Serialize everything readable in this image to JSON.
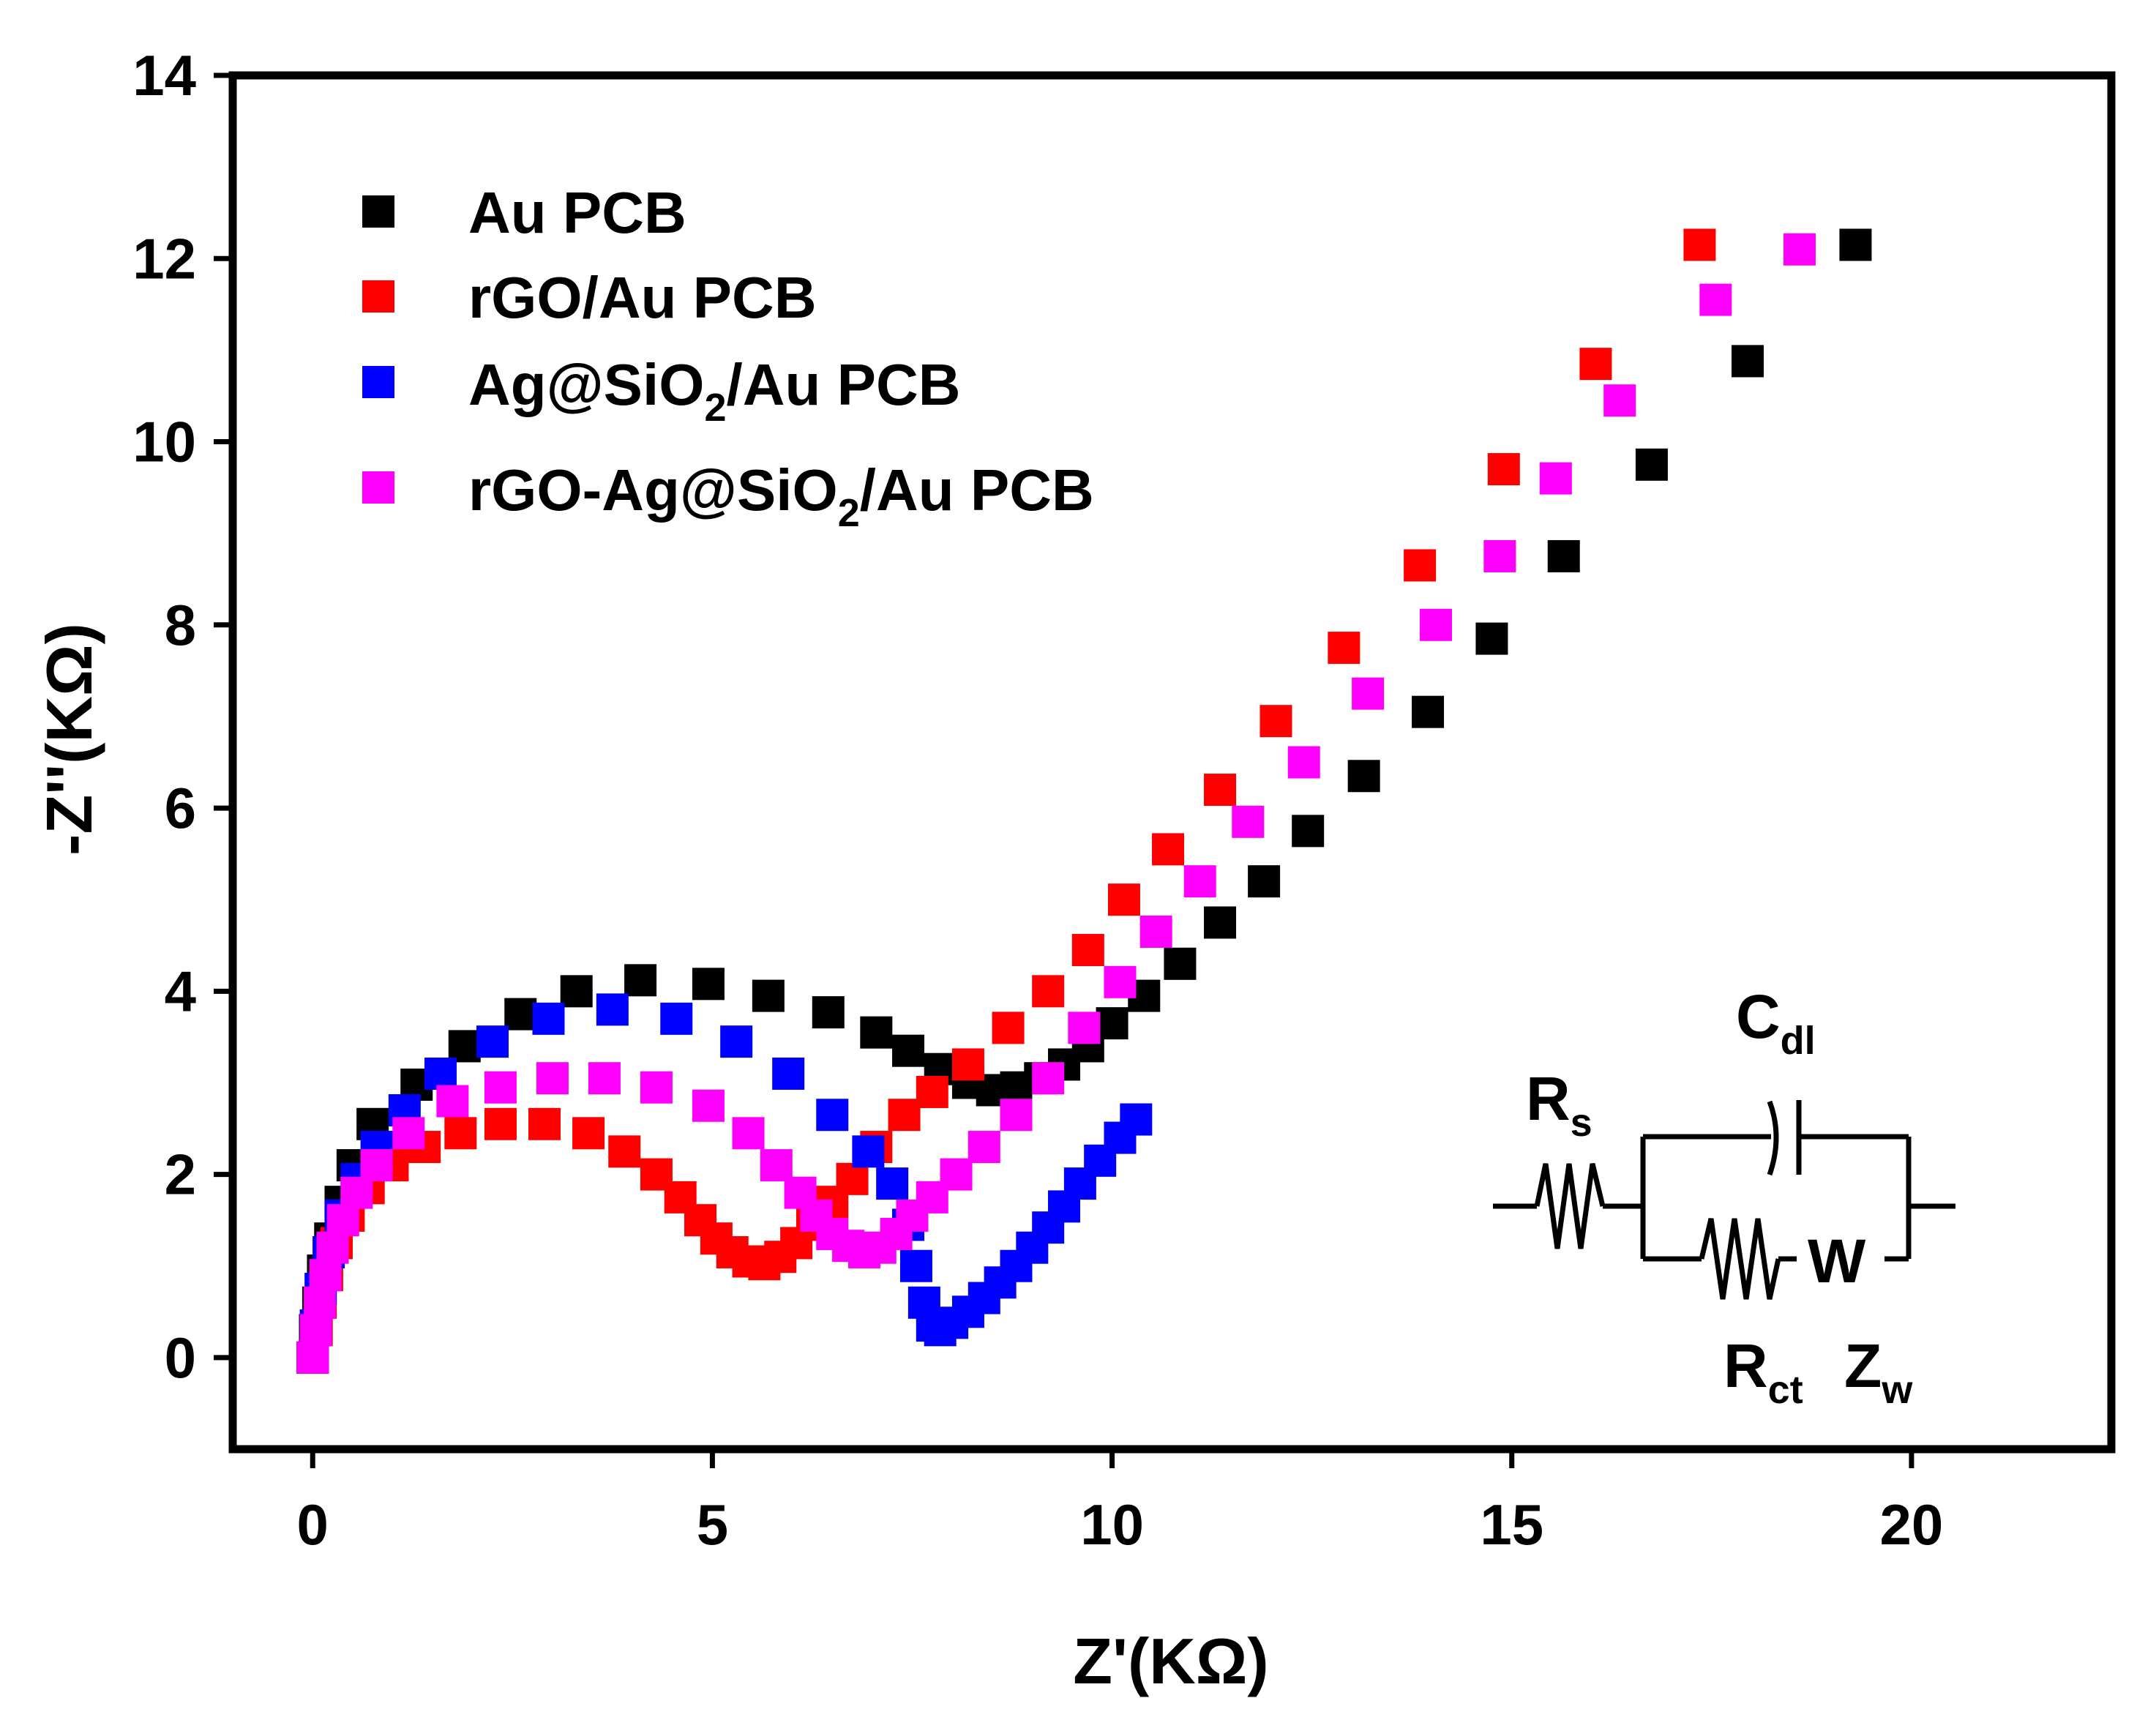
{
  "chart_data": {
    "type": "scatter",
    "title": "",
    "xlabel": "Z'(KΩ)",
    "ylabel": "-Z''(KΩ)",
    "xlim": [
      -1,
      22.5
    ],
    "ylim": [
      -1,
      14
    ],
    "xticks": [
      0,
      5,
      10,
      15,
      20
    ],
    "yticks": [
      0,
      2,
      4,
      6,
      8,
      10,
      12,
      14
    ],
    "legend_position": "top-left",
    "series": [
      {
        "name": "Au PCB",
        "color": "#000000",
        "points": [
          [
            0.0,
            0.0
          ],
          [
            0.03,
            0.3
          ],
          [
            0.07,
            0.6
          ],
          [
            0.13,
            0.95
          ],
          [
            0.22,
            1.3
          ],
          [
            0.35,
            1.7
          ],
          [
            0.5,
            2.1
          ],
          [
            0.75,
            2.55
          ],
          [
            1.3,
            2.98
          ],
          [
            1.9,
            3.4
          ],
          [
            2.6,
            3.75
          ],
          [
            3.3,
            4.0
          ],
          [
            4.1,
            4.12
          ],
          [
            4.95,
            4.08
          ],
          [
            5.7,
            3.95
          ],
          [
            6.45,
            3.77
          ],
          [
            7.05,
            3.55
          ],
          [
            7.45,
            3.35
          ],
          [
            7.85,
            3.15
          ],
          [
            8.2,
            3.0
          ],
          [
            8.5,
            2.92
          ],
          [
            8.8,
            2.95
          ],
          [
            9.1,
            3.05
          ],
          [
            9.4,
            3.2
          ],
          [
            9.7,
            3.4
          ],
          [
            10.0,
            3.65
          ],
          [
            10.4,
            3.95
          ],
          [
            10.85,
            4.3
          ],
          [
            11.35,
            4.75
          ],
          [
            11.9,
            5.2
          ],
          [
            12.45,
            5.75
          ],
          [
            13.15,
            6.35
          ],
          [
            13.95,
            7.05
          ],
          [
            14.75,
            7.85
          ],
          [
            15.65,
            8.75
          ],
          [
            16.75,
            9.75
          ],
          [
            17.95,
            10.88
          ],
          [
            19.3,
            12.15
          ]
        ]
      },
      {
        "name": "rGO/Au PCB",
        "color": "#ff0000",
        "points": [
          [
            0.0,
            0.0
          ],
          [
            0.05,
            0.3
          ],
          [
            0.1,
            0.6
          ],
          [
            0.18,
            0.9
          ],
          [
            0.3,
            1.25
          ],
          [
            0.45,
            1.55
          ],
          [
            0.7,
            1.85
          ],
          [
            1.0,
            2.1
          ],
          [
            1.4,
            2.3
          ],
          [
            1.85,
            2.45
          ],
          [
            2.35,
            2.55
          ],
          [
            2.9,
            2.55
          ],
          [
            3.45,
            2.45
          ],
          [
            3.9,
            2.25
          ],
          [
            4.3,
            2.0
          ],
          [
            4.6,
            1.75
          ],
          [
            4.85,
            1.5
          ],
          [
            5.05,
            1.3
          ],
          [
            5.25,
            1.15
          ],
          [
            5.45,
            1.05
          ],
          [
            5.65,
            1.02
          ],
          [
            5.85,
            1.1
          ],
          [
            6.05,
            1.25
          ],
          [
            6.25,
            1.45
          ],
          [
            6.5,
            1.7
          ],
          [
            6.75,
            1.95
          ],
          [
            7.05,
            2.3
          ],
          [
            7.4,
            2.65
          ],
          [
            7.75,
            2.9
          ],
          [
            8.2,
            3.2
          ],
          [
            8.7,
            3.6
          ],
          [
            9.2,
            4.0
          ],
          [
            9.7,
            4.45
          ],
          [
            10.15,
            5.0
          ],
          [
            10.7,
            5.55
          ],
          [
            11.35,
            6.2
          ],
          [
            12.05,
            6.95
          ],
          [
            12.9,
            7.75
          ],
          [
            13.85,
            8.65
          ],
          [
            14.9,
            9.7
          ],
          [
            16.05,
            10.85
          ],
          [
            17.35,
            12.15
          ]
        ]
      },
      {
        "name": "Ag@SiO2/Au PCB",
        "color": "#0000ff",
        "points": [
          [
            0.0,
            0.0
          ],
          [
            0.04,
            0.35
          ],
          [
            0.1,
            0.75
          ],
          [
            0.2,
            1.15
          ],
          [
            0.35,
            1.55
          ],
          [
            0.55,
            1.95
          ],
          [
            0.8,
            2.3
          ],
          [
            1.15,
            2.7
          ],
          [
            1.6,
            3.1
          ],
          [
            2.25,
            3.45
          ],
          [
            2.95,
            3.7
          ],
          [
            3.75,
            3.8
          ],
          [
            4.55,
            3.7
          ],
          [
            5.3,
            3.45
          ],
          [
            5.95,
            3.1
          ],
          [
            6.5,
            2.65
          ],
          [
            6.95,
            2.25
          ],
          [
            7.25,
            1.9
          ],
          [
            7.45,
            1.45
          ],
          [
            7.55,
            1.0
          ],
          [
            7.65,
            0.6
          ],
          [
            7.75,
            0.35
          ],
          [
            7.85,
            0.3
          ],
          [
            8.0,
            0.38
          ],
          [
            8.2,
            0.5
          ],
          [
            8.4,
            0.65
          ],
          [
            8.6,
            0.82
          ],
          [
            8.8,
            1.0
          ],
          [
            9.0,
            1.2
          ],
          [
            9.2,
            1.42
          ],
          [
            9.4,
            1.65
          ],
          [
            9.6,
            1.9
          ],
          [
            9.85,
            2.15
          ],
          [
            10.1,
            2.4
          ],
          [
            10.3,
            2.6
          ]
        ]
      },
      {
        "name": "rGO-Ag@SiO2/Au PCB",
        "color": "#ff00ff",
        "points": [
          [
            0.0,
            0.0
          ],
          [
            0.04,
            0.3
          ],
          [
            0.09,
            0.6
          ],
          [
            0.16,
            0.9
          ],
          [
            0.25,
            1.2
          ],
          [
            0.38,
            1.5
          ],
          [
            0.55,
            1.8
          ],
          [
            0.8,
            2.1
          ],
          [
            1.2,
            2.45
          ],
          [
            1.75,
            2.8
          ],
          [
            2.35,
            2.95
          ],
          [
            3.0,
            3.05
          ],
          [
            3.65,
            3.05
          ],
          [
            4.3,
            2.95
          ],
          [
            4.95,
            2.75
          ],
          [
            5.45,
            2.45
          ],
          [
            5.8,
            2.1
          ],
          [
            6.1,
            1.8
          ],
          [
            6.3,
            1.55
          ],
          [
            6.5,
            1.35
          ],
          [
            6.7,
            1.22
          ],
          [
            6.9,
            1.15
          ],
          [
            7.1,
            1.2
          ],
          [
            7.3,
            1.35
          ],
          [
            7.5,
            1.55
          ],
          [
            7.75,
            1.75
          ],
          [
            8.05,
            2.0
          ],
          [
            8.4,
            2.3
          ],
          [
            8.8,
            2.65
          ],
          [
            9.2,
            3.05
          ],
          [
            9.65,
            3.6
          ],
          [
            10.1,
            4.1
          ],
          [
            10.55,
            4.65
          ],
          [
            11.1,
            5.2
          ],
          [
            11.7,
            5.85
          ],
          [
            12.4,
            6.5
          ],
          [
            13.2,
            7.25
          ],
          [
            14.05,
            8.0
          ],
          [
            14.85,
            8.75
          ],
          [
            15.55,
            9.6
          ],
          [
            16.35,
            10.45
          ],
          [
            17.55,
            11.55
          ],
          [
            18.6,
            12.1
          ]
        ]
      }
    ],
    "legend": [
      {
        "label": "Au PCB",
        "color": "#000000"
      },
      {
        "label": "rGO/Au PCB",
        "color": "#ff0000"
      },
      {
        "label": "Ag@SiO2/Au PCB",
        "main": "Ag@SiO",
        "sub": "2",
        "rest": "/Au PCB",
        "color": "#0000ff"
      },
      {
        "label": "rGO-Ag@SiO2/Au PCB",
        "main": "rGO-Ag@SiO",
        "sub": "2",
        "rest": "/Au PCB",
        "color": "#ff00ff"
      }
    ],
    "circuit": {
      "rs": {
        "main": "R",
        "sub": "s"
      },
      "cdl": {
        "main": "C",
        "sub": "dl"
      },
      "w": "W",
      "rct": {
        "main": "R",
        "sub": "ct"
      },
      "zw": {
        "main": "Z",
        "sub": "w"
      }
    }
  }
}
